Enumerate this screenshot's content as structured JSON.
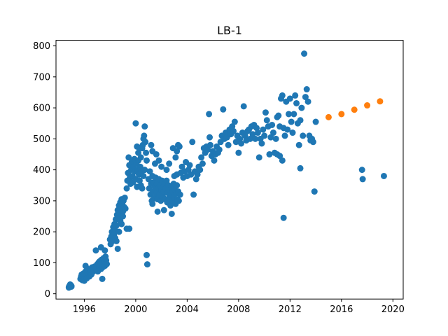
{
  "chart_data": {
    "type": "scatter",
    "title": "LB-1",
    "xlabel": "",
    "ylabel": "",
    "xlim": [
      1993.8,
      2020.8
    ],
    "ylim": [
      -17,
      818
    ],
    "xticks": [
      1996,
      2000,
      2004,
      2008,
      2012,
      2016,
      2020
    ],
    "yticks": [
      0,
      100,
      200,
      300,
      400,
      500,
      600,
      700,
      800
    ],
    "grid": false,
    "series": [
      {
        "color": "#1f77b4",
        "points": [
          [
            1994.8,
            22
          ],
          [
            1994.85,
            26
          ],
          [
            1994.9,
            24
          ],
          [
            1994.95,
            28
          ],
          [
            1995.0,
            25
          ],
          [
            1994.9,
            30
          ],
          [
            1994.8,
            20
          ],
          [
            1995.0,
            23
          ],
          [
            1995.7,
            48
          ],
          [
            1995.75,
            55
          ],
          [
            1995.8,
            62
          ],
          [
            1995.85,
            44
          ],
          [
            1995.9,
            58
          ],
          [
            1995.95,
            66
          ],
          [
            1996.0,
            42
          ],
          [
            1996.05,
            52
          ],
          [
            1996.1,
            72
          ],
          [
            1996.15,
            60
          ],
          [
            1996.2,
            50
          ],
          [
            1996.25,
            80
          ],
          [
            1996.3,
            64
          ],
          [
            1996.35,
            75
          ],
          [
            1996.4,
            56
          ],
          [
            1996.45,
            68
          ],
          [
            1996.1,
            90
          ],
          [
            1996.5,
            74
          ],
          [
            1996.55,
            62
          ],
          [
            1996.6,
            85
          ],
          [
            1996.65,
            70
          ],
          [
            1996.7,
            78
          ],
          [
            1996.8,
            88
          ],
          [
            1996.9,
            82
          ],
          [
            1997.0,
            95
          ],
          [
            1997.05,
            72
          ],
          [
            1997.1,
            100
          ],
          [
            1997.15,
            84
          ],
          [
            1997.2,
            105
          ],
          [
            1997.25,
            92
          ],
          [
            1997.3,
            80
          ],
          [
            1997.35,
            110
          ],
          [
            1997.4,
            98
          ],
          [
            1997.45,
            86
          ],
          [
            1997.5,
            115
          ],
          [
            1997.55,
            102
          ],
          [
            1997.6,
            90
          ],
          [
            1997.65,
            120
          ],
          [
            1997.7,
            108
          ],
          [
            1997.75,
            96
          ],
          [
            1996.9,
            140
          ],
          [
            1997.3,
            150
          ],
          [
            1997.4,
            48
          ],
          [
            1997.6,
            140
          ],
          [
            1998.0,
            175
          ],
          [
            1998.05,
            160
          ],
          [
            1998.1,
            185
          ],
          [
            1998.15,
            200
          ],
          [
            1998.2,
            170
          ],
          [
            1998.25,
            215
          ],
          [
            1998.3,
            190
          ],
          [
            1998.35,
            225
          ],
          [
            1998.4,
            205
          ],
          [
            1998.45,
            240
          ],
          [
            1998.5,
            220
          ],
          [
            1998.55,
            255
          ],
          [
            1998.6,
            270
          ],
          [
            1998.65,
            245
          ],
          [
            1998.7,
            285
          ],
          [
            1998.75,
            260
          ],
          [
            1998.8,
            295
          ],
          [
            1998.85,
            275
          ],
          [
            1998.9,
            305
          ],
          [
            1998.95,
            290
          ],
          [
            1999.0,
            265
          ],
          [
            1999.05,
            300
          ],
          [
            1999.1,
            280
          ],
          [
            1999.15,
            310
          ],
          [
            1998.6,
            145
          ],
          [
            1998.5,
            170
          ],
          [
            1998.7,
            200
          ],
          [
            1998.8,
            235
          ],
          [
            1999.0,
            250
          ],
          [
            1999.2,
            275
          ],
          [
            1999.3,
            210
          ],
          [
            1999.5,
            210
          ],
          [
            1998.4,
            180
          ],
          [
            1998.9,
            225
          ],
          [
            1999.3,
            340
          ],
          [
            1999.35,
            365
          ],
          [
            1999.4,
            390
          ],
          [
            1999.45,
            440
          ],
          [
            1999.5,
            415
          ],
          [
            1999.55,
            375
          ],
          [
            1999.6,
            355
          ],
          [
            1999.65,
            400
          ],
          [
            1999.7,
            425
          ],
          [
            1999.75,
            380
          ],
          [
            1999.8,
            360
          ],
          [
            1999.85,
            410
          ],
          [
            1999.9,
            435
          ],
          [
            1999.95,
            395
          ],
          [
            2000.0,
            370
          ],
          [
            2000.05,
            420
          ],
          [
            2000.1,
            345
          ],
          [
            2000.15,
            400
          ],
          [
            2000.2,
            430
          ],
          [
            2000.25,
            385
          ],
          [
            2000.3,
            365
          ],
          [
            2000.35,
            410
          ],
          [
            2000.4,
            440
          ],
          [
            2000.45,
            395
          ],
          [
            2000.5,
            470
          ],
          [
            2000.55,
            480
          ],
          [
            2000.6,
            500
          ],
          [
            2000.65,
            510
          ],
          [
            2000.7,
            540
          ],
          [
            2000.75,
            490
          ],
          [
            2000.8,
            455
          ],
          [
            2000.85,
            430
          ],
          [
            2000.0,
            550
          ],
          [
            2000.1,
            475
          ],
          [
            2000.2,
            455
          ],
          [
            2000.3,
            470
          ],
          [
            2000.4,
            350
          ],
          [
            2000.5,
            340
          ],
          [
            2000.6,
            380
          ],
          [
            2000.7,
            400
          ],
          [
            2000.85,
            125
          ],
          [
            2000.9,
            95
          ],
          [
            2001.0,
            370
          ],
          [
            2001.05,
            340
          ],
          [
            2001.1,
            395
          ],
          [
            2001.15,
            320
          ],
          [
            2001.2,
            355
          ],
          [
            2001.25,
            300
          ],
          [
            2001.3,
            380
          ],
          [
            2001.35,
            330
          ],
          [
            2001.4,
            360
          ],
          [
            2001.45,
            310
          ],
          [
            2001.5,
            345
          ],
          [
            2001.55,
            375
          ],
          [
            2001.6,
            325
          ],
          [
            2001.65,
            355
          ],
          [
            2001.7,
            305
          ],
          [
            2001.75,
            340
          ],
          [
            2001.8,
            370
          ],
          [
            2001.85,
            320
          ],
          [
            2001.9,
            350
          ],
          [
            2001.95,
            300
          ],
          [
            2002.0,
            335
          ],
          [
            2002.05,
            365
          ],
          [
            2002.1,
            315
          ],
          [
            2002.15,
            345
          ],
          [
            2001.2,
            480
          ],
          [
            2001.3,
            460
          ],
          [
            2001.5,
            420
          ],
          [
            2001.6,
            450
          ],
          [
            2001.8,
            430
          ],
          [
            2002.0,
            410
          ],
          [
            2001.3,
            290
          ],
          [
            2001.7,
            265
          ],
          [
            2002.2,
            330
          ],
          [
            2002.25,
            355
          ],
          [
            2002.3,
            305
          ],
          [
            2002.35,
            340
          ],
          [
            2002.4,
            365
          ],
          [
            2002.45,
            295
          ],
          [
            2002.5,
            325
          ],
          [
            2002.55,
            350
          ],
          [
            2002.6,
            310
          ],
          [
            2002.65,
            335
          ],
          [
            2002.7,
            285
          ],
          [
            2002.75,
            320
          ],
          [
            2002.8,
            345
          ],
          [
            2002.85,
            300
          ],
          [
            2002.9,
            330
          ],
          [
            2002.95,
            355
          ],
          [
            2003.0,
            310
          ],
          [
            2003.05,
            335
          ],
          [
            2003.1,
            290
          ],
          [
            2003.15,
            325
          ],
          [
            2003.2,
            350
          ],
          [
            2003.25,
            305
          ],
          [
            2003.3,
            330
          ],
          [
            2003.35,
            300
          ],
          [
            2002.2,
            270
          ],
          [
            2002.8,
            258
          ],
          [
            2002.4,
            400
          ],
          [
            2002.6,
            420
          ],
          [
            2002.9,
            470
          ],
          [
            2003.1,
            440
          ],
          [
            2003.2,
            460
          ],
          [
            2003.3,
            480
          ],
          [
            2003.4,
            475
          ],
          [
            2003.0,
            380
          ],
          [
            2003.2,
            385
          ],
          [
            2003.45,
            320
          ],
          [
            2003.5,
            390
          ],
          [
            2003.6,
            410
          ],
          [
            2003.7,
            375
          ],
          [
            2003.8,
            395
          ],
          [
            2003.9,
            425
          ],
          [
            2004.0,
            380
          ],
          [
            2004.1,
            400
          ],
          [
            2004.2,
            415
          ],
          [
            2004.3,
            385
          ],
          [
            2004.4,
            490
          ],
          [
            2004.5,
            320
          ],
          [
            2004.6,
            395
          ],
          [
            2004.7,
            370
          ],
          [
            2004.8,
            385
          ],
          [
            2004.9,
            410
          ],
          [
            2005.0,
            400
          ],
          [
            2005.1,
            440
          ],
          [
            2005.2,
            420
          ],
          [
            2005.3,
            470
          ],
          [
            2005.4,
            455
          ],
          [
            2005.5,
            475
          ],
          [
            2005.6,
            465
          ],
          [
            2005.7,
            580
          ],
          [
            2005.75,
            505
          ],
          [
            2005.8,
            480
          ],
          [
            2005.9,
            445
          ],
          [
            2006.0,
            460
          ],
          [
            2006.1,
            430
          ],
          [
            2006.2,
            450
          ],
          [
            2006.3,
            475
          ],
          [
            2006.4,
            455
          ],
          [
            2006.5,
            465
          ],
          [
            2006.6,
            490
          ],
          [
            2006.7,
            510
          ],
          [
            2006.8,
            595
          ],
          [
            2006.9,
            500
          ],
          [
            2007.0,
            520
          ],
          [
            2007.1,
            505
          ],
          [
            2007.2,
            480
          ],
          [
            2007.3,
            530
          ],
          [
            2007.4,
            515
          ],
          [
            2007.5,
            540
          ],
          [
            2007.6,
            525
          ],
          [
            2007.7,
            555
          ],
          [
            2007.8,
            490
          ],
          [
            2007.9,
            510
          ],
          [
            2008.0,
            455
          ],
          [
            2008.1,
            500
          ],
          [
            2008.2,
            485
          ],
          [
            2008.3,
            520
          ],
          [
            2008.4,
            605
          ],
          [
            2008.5,
            510
          ],
          [
            2008.6,
            495
          ],
          [
            2008.7,
            525
          ],
          [
            2008.8,
            530
          ],
          [
            2008.9,
            500
          ],
          [
            2009.0,
            540
          ],
          [
            2009.1,
            515
          ],
          [
            2009.2,
            545
          ],
          [
            2009.3,
            500
          ],
          [
            2009.4,
            535
          ],
          [
            2009.5,
            520
          ],
          [
            2009.6,
            440
          ],
          [
            2009.7,
            500
          ],
          [
            2009.8,
            485
          ],
          [
            2009.9,
            530
          ],
          [
            2010.0,
            510
          ],
          [
            2010.1,
            585
          ],
          [
            2010.2,
            560
          ],
          [
            2010.3,
            540
          ],
          [
            2010.4,
            450
          ],
          [
            2010.5,
            505
          ],
          [
            2010.6,
            545
          ],
          [
            2010.7,
            520
          ],
          [
            2010.8,
            455
          ],
          [
            2010.9,
            500
          ],
          [
            2011.0,
            570
          ],
          [
            2011.1,
            575
          ],
          [
            2011.2,
            540
          ],
          [
            2011.3,
            630
          ],
          [
            2011.4,
            640
          ],
          [
            2011.5,
            535
          ],
          [
            2011.6,
            510
          ],
          [
            2011.7,
            620
          ],
          [
            2011.8,
            530
          ],
          [
            2011.9,
            580
          ],
          [
            2012.0,
            630
          ],
          [
            2012.1,
            555
          ],
          [
            2012.2,
            520
          ],
          [
            2012.3,
            580
          ],
          [
            2012.4,
            640
          ],
          [
            2012.5,
            615
          ],
          [
            2012.6,
            550
          ],
          [
            2012.7,
            480
          ],
          [
            2012.8,
            560
          ],
          [
            2012.9,
            600
          ],
          [
            2013.0,
            510
          ],
          [
            2013.1,
            775
          ],
          [
            2013.2,
            635
          ],
          [
            2013.3,
            660
          ],
          [
            2013.4,
            620
          ],
          [
            2013.5,
            510
          ],
          [
            2013.6,
            495
          ],
          [
            2013.7,
            500
          ],
          [
            2011.0,
            450
          ],
          [
            2011.2,
            445
          ],
          [
            2011.4,
            430
          ],
          [
            2011.5,
            245
          ],
          [
            2012.8,
            405
          ],
          [
            2013.9,
            330
          ],
          [
            2014.0,
            555
          ],
          [
            2013.8,
            490
          ],
          [
            2017.6,
            400
          ],
          [
            2017.65,
            370
          ],
          [
            2019.3,
            380
          ]
        ]
      },
      {
        "color": "#ff7f0e",
        "points": [
          [
            2015,
            570
          ],
          [
            2016,
            580
          ],
          [
            2017,
            594
          ],
          [
            2018,
            608
          ],
          [
            2019,
            621
          ]
        ]
      }
    ]
  },
  "colors": {
    "axis": "#000000",
    "background": "#ffffff"
  }
}
